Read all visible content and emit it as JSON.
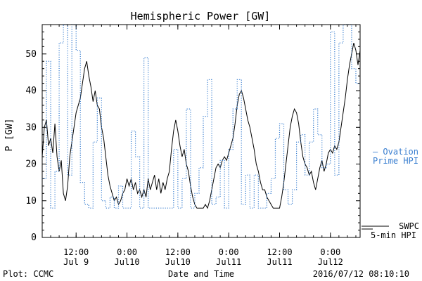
{
  "chart_data": {
    "type": "line",
    "title": "Hemispheric Power [GW]",
    "ylabel": "P [GW]",
    "xlabel": "Date and Time",
    "ylim": [
      0,
      58
    ],
    "yticks": [
      0,
      10,
      20,
      30,
      40,
      50
    ],
    "xlim": [
      "2016-07-09 04:00",
      "2016-07-12 07:00"
    ],
    "xticks": [
      {
        "t": "2016-07-09 12:00",
        "label1": "12:00",
        "label2": "Jul 9"
      },
      {
        "t": "2016-07-10 00:00",
        "label1": "0:00",
        "label2": "Jul10"
      },
      {
        "t": "2016-07-10 12:00",
        "label1": "12:00",
        "label2": "Jul10"
      },
      {
        "t": "2016-07-11 00:00",
        "label1": "0:00",
        "label2": "Jul11"
      },
      {
        "t": "2016-07-11 12:00",
        "label1": "12:00",
        "label2": "Jul11"
      },
      {
        "t": "2016-07-12 00:00",
        "label1": "0:00",
        "label2": "Jul12"
      }
    ],
    "grid": false,
    "series": [
      {
        "name": "SWPC 5-min HPI",
        "color": "#000000",
        "style": "solid",
        "points": [
          [
            "2016-07-09 04:00",
            22
          ],
          [
            "2016-07-09 04:30",
            30
          ],
          [
            "2016-07-09 05:00",
            32
          ],
          [
            "2016-07-09 05:30",
            25
          ],
          [
            "2016-07-09 06:00",
            27
          ],
          [
            "2016-07-09 06:30",
            23
          ],
          [
            "2016-07-09 07:00",
            31
          ],
          [
            "2016-07-09 07:30",
            22
          ],
          [
            "2016-07-09 08:00",
            18
          ],
          [
            "2016-07-09 08:30",
            21
          ],
          [
            "2016-07-09 09:00",
            12
          ],
          [
            "2016-07-09 09:30",
            10
          ],
          [
            "2016-07-09 10:00",
            14
          ],
          [
            "2016-07-09 10:30",
            22
          ],
          [
            "2016-07-09 11:00",
            26
          ],
          [
            "2016-07-09 11:30",
            30
          ],
          [
            "2016-07-09 12:00",
            34
          ],
          [
            "2016-07-09 12:30",
            36
          ],
          [
            "2016-07-09 13:00",
            38
          ],
          [
            "2016-07-09 13:30",
            42
          ],
          [
            "2016-07-09 14:00",
            46
          ],
          [
            "2016-07-09 14:30",
            48
          ],
          [
            "2016-07-09 15:00",
            44
          ],
          [
            "2016-07-09 15:30",
            41
          ],
          [
            "2016-07-09 16:00",
            37
          ],
          [
            "2016-07-09 16:30",
            40
          ],
          [
            "2016-07-09 17:00",
            36
          ],
          [
            "2016-07-09 17:30",
            35
          ],
          [
            "2016-07-09 18:00",
            30
          ],
          [
            "2016-07-09 18:30",
            27
          ],
          [
            "2016-07-09 19:00",
            22
          ],
          [
            "2016-07-09 19:30",
            17
          ],
          [
            "2016-07-09 20:00",
            14
          ],
          [
            "2016-07-09 20:30",
            12
          ],
          [
            "2016-07-09 21:00",
            10
          ],
          [
            "2016-07-09 21:30",
            11
          ],
          [
            "2016-07-09 22:00",
            9
          ],
          [
            "2016-07-09 22:30",
            10
          ],
          [
            "2016-07-09 23:00",
            12
          ],
          [
            "2016-07-09 23:30",
            13
          ],
          [
            "2016-07-10 00:00",
            16
          ],
          [
            "2016-07-10 00:30",
            14
          ],
          [
            "2016-07-10 01:00",
            16
          ],
          [
            "2016-07-10 01:30",
            13
          ],
          [
            "2016-07-10 02:00",
            15
          ],
          [
            "2016-07-10 02:30",
            12
          ],
          [
            "2016-07-10 03:00",
            13
          ],
          [
            "2016-07-10 03:30",
            11
          ],
          [
            "2016-07-10 04:00",
            13
          ],
          [
            "2016-07-10 04:30",
            11
          ],
          [
            "2016-07-10 05:00",
            16
          ],
          [
            "2016-07-10 05:30",
            13
          ],
          [
            "2016-07-10 06:00",
            15
          ],
          [
            "2016-07-10 06:30",
            17
          ],
          [
            "2016-07-10 07:00",
            13
          ],
          [
            "2016-07-10 07:30",
            16
          ],
          [
            "2016-07-10 08:00",
            12
          ],
          [
            "2016-07-10 08:30",
            15
          ],
          [
            "2016-07-10 09:00",
            13
          ],
          [
            "2016-07-10 09:30",
            16
          ],
          [
            "2016-07-10 10:00",
            18
          ],
          [
            "2016-07-10 10:30",
            24
          ],
          [
            "2016-07-10 11:00",
            29
          ],
          [
            "2016-07-10 11:30",
            32
          ],
          [
            "2016-07-10 12:00",
            29
          ],
          [
            "2016-07-10 12:30",
            25
          ],
          [
            "2016-07-10 13:00",
            22
          ],
          [
            "2016-07-10 13:30",
            24
          ],
          [
            "2016-07-10 14:00",
            20
          ],
          [
            "2016-07-10 14:30",
            18
          ],
          [
            "2016-07-10 15:00",
            14
          ],
          [
            "2016-07-10 15:30",
            11
          ],
          [
            "2016-07-10 16:00",
            9
          ],
          [
            "2016-07-10 16:30",
            8
          ],
          [
            "2016-07-10 17:00",
            8
          ],
          [
            "2016-07-10 17:30",
            8
          ],
          [
            "2016-07-10 18:00",
            8
          ],
          [
            "2016-07-10 18:30",
            9
          ],
          [
            "2016-07-10 19:00",
            8
          ],
          [
            "2016-07-10 19:30",
            10
          ],
          [
            "2016-07-10 20:00",
            13
          ],
          [
            "2016-07-10 20:30",
            16
          ],
          [
            "2016-07-10 21:00",
            19
          ],
          [
            "2016-07-10 21:30",
            20
          ],
          [
            "2016-07-10 22:00",
            19
          ],
          [
            "2016-07-10 22:30",
            21
          ],
          [
            "2016-07-10 23:00",
            22
          ],
          [
            "2016-07-10 23:30",
            21
          ],
          [
            "2016-07-11 00:00",
            23
          ],
          [
            "2016-07-11 00:30",
            25
          ],
          [
            "2016-07-11 01:00",
            27
          ],
          [
            "2016-07-11 01:30",
            31
          ],
          [
            "2016-07-11 02:00",
            36
          ],
          [
            "2016-07-11 02:30",
            39
          ],
          [
            "2016-07-11 03:00",
            40
          ],
          [
            "2016-07-11 03:30",
            38
          ],
          [
            "2016-07-11 04:00",
            35
          ],
          [
            "2016-07-11 04:30",
            32
          ],
          [
            "2016-07-11 05:00",
            30
          ],
          [
            "2016-07-11 05:30",
            27
          ],
          [
            "2016-07-11 06:00",
            24
          ],
          [
            "2016-07-11 06:30",
            20
          ],
          [
            "2016-07-11 07:00",
            18
          ],
          [
            "2016-07-11 07:30",
            15
          ],
          [
            "2016-07-11 08:00",
            13
          ],
          [
            "2016-07-11 08:30",
            13
          ],
          [
            "2016-07-11 09:00",
            11
          ],
          [
            "2016-07-11 09:30",
            10
          ],
          [
            "2016-07-11 10:00",
            9
          ],
          [
            "2016-07-11 10:30",
            8
          ],
          [
            "2016-07-11 11:00",
            8
          ],
          [
            "2016-07-11 11:30",
            8
          ],
          [
            "2016-07-11 12:00",
            8
          ],
          [
            "2016-07-11 12:30",
            11
          ],
          [
            "2016-07-11 13:00",
            15
          ],
          [
            "2016-07-11 13:30",
            20
          ],
          [
            "2016-07-11 14:00",
            25
          ],
          [
            "2016-07-11 14:30",
            30
          ],
          [
            "2016-07-11 15:00",
            33
          ],
          [
            "2016-07-11 15:30",
            35
          ],
          [
            "2016-07-11 16:00",
            34
          ],
          [
            "2016-07-11 16:30",
            31
          ],
          [
            "2016-07-11 17:00",
            26
          ],
          [
            "2016-07-11 17:30",
            22
          ],
          [
            "2016-07-11 18:00",
            20
          ],
          [
            "2016-07-11 18:30",
            19
          ],
          [
            "2016-07-11 19:00",
            17
          ],
          [
            "2016-07-11 19:30",
            18
          ],
          [
            "2016-07-11 20:00",
            15
          ],
          [
            "2016-07-11 20:30",
            13
          ],
          [
            "2016-07-11 21:00",
            16
          ],
          [
            "2016-07-11 21:30",
            19
          ],
          [
            "2016-07-11 22:00",
            21
          ],
          [
            "2016-07-11 22:30",
            18
          ],
          [
            "2016-07-11 23:00",
            20
          ],
          [
            "2016-07-11 23:30",
            23
          ],
          [
            "2016-07-12 00:00",
            24
          ],
          [
            "2016-07-12 00:30",
            23
          ],
          [
            "2016-07-12 01:00",
            25
          ],
          [
            "2016-07-12 01:30",
            24
          ],
          [
            "2016-07-12 02:00",
            26
          ],
          [
            "2016-07-12 02:30",
            30
          ],
          [
            "2016-07-12 03:00",
            34
          ],
          [
            "2016-07-12 03:30",
            38
          ],
          [
            "2016-07-12 04:00",
            43
          ],
          [
            "2016-07-12 04:30",
            47
          ],
          [
            "2016-07-12 05:00",
            50
          ],
          [
            "2016-07-12 05:30",
            53
          ],
          [
            "2016-07-12 06:00",
            51
          ],
          [
            "2016-07-12 06:30",
            47
          ],
          [
            "2016-07-12 07:00",
            51
          ]
        ]
      },
      {
        "name": "Ovation Prime HPI",
        "color": "#3a7fd0",
        "style": "dotted-step",
        "points": [
          [
            "2016-07-09 04:00",
            16
          ],
          [
            "2016-07-09 05:00",
            48
          ],
          [
            "2016-07-09 06:00",
            8
          ],
          [
            "2016-07-09 07:00",
            18
          ],
          [
            "2016-07-09 08:00",
            53
          ],
          [
            "2016-07-09 09:00",
            58
          ],
          [
            "2016-07-09 10:00",
            17
          ],
          [
            "2016-07-09 11:00",
            58
          ],
          [
            "2016-07-09 12:00",
            51
          ],
          [
            "2016-07-09 13:00",
            15
          ],
          [
            "2016-07-09 14:00",
            9
          ],
          [
            "2016-07-09 15:00",
            8
          ],
          [
            "2016-07-09 16:00",
            26
          ],
          [
            "2016-07-09 17:00",
            38
          ],
          [
            "2016-07-09 18:00",
            10
          ],
          [
            "2016-07-09 19:00",
            8
          ],
          [
            "2016-07-09 20:00",
            11
          ],
          [
            "2016-07-09 21:00",
            8
          ],
          [
            "2016-07-09 22:00",
            14
          ],
          [
            "2016-07-09 23:00",
            8
          ],
          [
            "2016-07-10 00:00",
            8
          ],
          [
            "2016-07-10 01:00",
            29
          ],
          [
            "2016-07-10 02:00",
            22
          ],
          [
            "2016-07-10 03:00",
            8
          ],
          [
            "2016-07-10 04:00",
            49
          ],
          [
            "2016-07-10 05:00",
            8
          ],
          [
            "2016-07-10 06:00",
            8
          ],
          [
            "2016-07-10 07:00",
            8
          ],
          [
            "2016-07-10 08:00",
            8
          ],
          [
            "2016-07-10 09:00",
            8
          ],
          [
            "2016-07-10 10:00",
            8
          ],
          [
            "2016-07-10 11:00",
            24
          ],
          [
            "2016-07-10 12:00",
            8
          ],
          [
            "2016-07-10 13:00",
            16
          ],
          [
            "2016-07-10 14:00",
            35
          ],
          [
            "2016-07-10 15:00",
            8
          ],
          [
            "2016-07-10 16:00",
            12
          ],
          [
            "2016-07-10 17:00",
            19
          ],
          [
            "2016-07-10 18:00",
            33
          ],
          [
            "2016-07-10 19:00",
            43
          ],
          [
            "2016-07-10 20:00",
            9
          ],
          [
            "2016-07-10 21:00",
            11
          ],
          [
            "2016-07-10 22:00",
            21
          ],
          [
            "2016-07-10 23:00",
            8
          ],
          [
            "2016-07-11 00:00",
            24
          ],
          [
            "2016-07-11 01:00",
            35
          ],
          [
            "2016-07-11 02:00",
            43
          ],
          [
            "2016-07-11 03:00",
            9
          ],
          [
            "2016-07-11 04:00",
            17
          ],
          [
            "2016-07-11 05:00",
            8
          ],
          [
            "2016-07-11 06:00",
            17
          ],
          [
            "2016-07-11 07:00",
            8
          ],
          [
            "2016-07-11 08:00",
            8
          ],
          [
            "2016-07-11 09:00",
            12
          ],
          [
            "2016-07-11 10:00",
            16
          ],
          [
            "2016-07-11 11:00",
            27
          ],
          [
            "2016-07-11 12:00",
            31
          ],
          [
            "2016-07-11 13:00",
            13
          ],
          [
            "2016-07-11 14:00",
            9
          ],
          [
            "2016-07-11 15:00",
            13
          ],
          [
            "2016-07-11 16:00",
            26
          ],
          [
            "2016-07-11 17:00",
            28
          ],
          [
            "2016-07-11 18:00",
            17
          ],
          [
            "2016-07-11 19:00",
            26
          ],
          [
            "2016-07-11 20:00",
            35
          ],
          [
            "2016-07-11 21:00",
            28
          ],
          [
            "2016-07-11 22:00",
            19
          ],
          [
            "2016-07-11 23:00",
            20
          ],
          [
            "2016-07-12 00:00",
            56
          ],
          [
            "2016-07-12 01:00",
            17
          ],
          [
            "2016-07-12 02:00",
            53
          ],
          [
            "2016-07-12 03:00",
            58
          ],
          [
            "2016-07-12 04:00",
            58
          ],
          [
            "2016-07-12 05:00",
            46
          ],
          [
            "2016-07-12 06:00",
            42
          ],
          [
            "2016-07-12 07:00",
            42
          ]
        ]
      }
    ],
    "legend": {
      "ovation_line1": "– Ovation",
      "ovation_line2": "Prime HPI",
      "swpc_line1": "SWPC",
      "swpc_line2": "5-min HPI"
    }
  },
  "footer": {
    "left": "Plot: CCMC",
    "right": "2016/07/12 08:10:10"
  }
}
